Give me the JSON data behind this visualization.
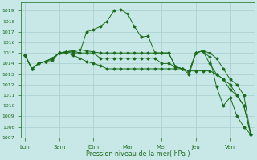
{
  "bg_color": "#c8e8e8",
  "grid_color": "#a8cece",
  "line_color": "#1a6b1a",
  "xlabel": "Pression niveau de la mer( hPa )",
  "ylim": [
    1007,
    1019.8
  ],
  "yticks": [
    1007,
    1008,
    1009,
    1010,
    1011,
    1012,
    1013,
    1014,
    1015,
    1016,
    1017,
    1018,
    1019
  ],
  "day_labels": [
    "Lun",
    "Sam",
    "Dim",
    "Mar",
    "Mer",
    "Jeu",
    "Ven"
  ],
  "series": [
    {
      "x": [
        0,
        0.5,
        1,
        1.5,
        2,
        2.5,
        3,
        3.5,
        4,
        4.5,
        5,
        5.5,
        6,
        6.5,
        7,
        7.5,
        8,
        8.5,
        9,
        9.5,
        10,
        10.5,
        11,
        11.5,
        12,
        12.5,
        13,
        13.5,
        14,
        14.5,
        15,
        15.5,
        16,
        16.5
      ],
      "y": [
        1014.8,
        1013.5,
        1014.0,
        1014.2,
        1014.5,
        1015.0,
        1015.1,
        1015.2,
        1015.0,
        1017.0,
        1017.2,
        1017.5,
        1018.0,
        1019.0,
        1019.1,
        1018.7,
        1017.5,
        1016.5,
        1016.6,
        1015.0,
        1015.0,
        1015.0,
        1013.7,
        1013.5,
        1013.0,
        1015.0,
        1015.2,
        1014.6,
        1011.8,
        1010.0,
        1010.8,
        1009.0,
        1008.0,
        1007.3
      ]
    },
    {
      "x": [
        0,
        0.5,
        1,
        1.5,
        2,
        2.5,
        3,
        3.5,
        4,
        4.5,
        5,
        5.5,
        6,
        6.5,
        7,
        7.5,
        8,
        8.5,
        9,
        9.5,
        10,
        10.5,
        11,
        11.5,
        12,
        12.5,
        13,
        13.5,
        14,
        14.5,
        15,
        15.5,
        16,
        16.5
      ],
      "y": [
        1014.8,
        1013.5,
        1014.0,
        1014.2,
        1014.5,
        1015.0,
        1015.1,
        1015.2,
        1015.3,
        1015.2,
        1015.1,
        1015.0,
        1015.0,
        1015.0,
        1015.0,
        1015.0,
        1015.0,
        1015.0,
        1015.0,
        1015.0,
        1015.0,
        1015.0,
        1013.7,
        1013.5,
        1013.3,
        1015.0,
        1015.2,
        1015.0,
        1014.5,
        1013.5,
        1012.5,
        1012.0,
        1011.0,
        1007.3
      ]
    },
    {
      "x": [
        0,
        0.5,
        1,
        1.5,
        2,
        2.5,
        3,
        3.5,
        4,
        4.5,
        5,
        5.5,
        6,
        6.5,
        7,
        7.5,
        8,
        8.5,
        9,
        9.5,
        10,
        10.5,
        11,
        11.5,
        12,
        12.5,
        13,
        13.5,
        14,
        14.5,
        15,
        15.5,
        16,
        16.5
      ],
      "y": [
        1014.8,
        1013.5,
        1014.0,
        1014.2,
        1014.5,
        1015.0,
        1015.1,
        1015.0,
        1015.0,
        1015.0,
        1015.0,
        1014.5,
        1014.5,
        1014.5,
        1014.5,
        1014.5,
        1014.5,
        1014.5,
        1014.5,
        1014.5,
        1014.0,
        1014.0,
        1013.7,
        1013.5,
        1013.3,
        1015.0,
        1015.2,
        1014.0,
        1013.0,
        1012.5,
        1012.0,
        1011.0,
        1010.0,
        1007.3
      ]
    },
    {
      "x": [
        0,
        0.5,
        1,
        1.5,
        2,
        2.5,
        3,
        3.5,
        4,
        4.5,
        5,
        5.5,
        6,
        6.5,
        7,
        7.5,
        8,
        8.5,
        9,
        9.5,
        10,
        10.5,
        11,
        11.5,
        12,
        12.5,
        13,
        13.5,
        14,
        14.5,
        15,
        15.5,
        16,
        16.5
      ],
      "y": [
        1014.8,
        1013.5,
        1014.0,
        1014.2,
        1014.3,
        1015.0,
        1015.0,
        1014.8,
        1014.5,
        1014.2,
        1014.0,
        1013.8,
        1013.5,
        1013.5,
        1013.5,
        1013.5,
        1013.5,
        1013.5,
        1013.5,
        1013.5,
        1013.5,
        1013.5,
        1013.5,
        1013.5,
        1013.3,
        1013.3,
        1013.3,
        1013.3,
        1013.0,
        1012.5,
        1011.5,
        1011.0,
        1010.0,
        1007.3
      ]
    }
  ],
  "day_tick_x": [
    0,
    2.5,
    5.0,
    7.5,
    10.0,
    12.5,
    15.0
  ],
  "xmin": -0.3,
  "xmax": 16.8
}
